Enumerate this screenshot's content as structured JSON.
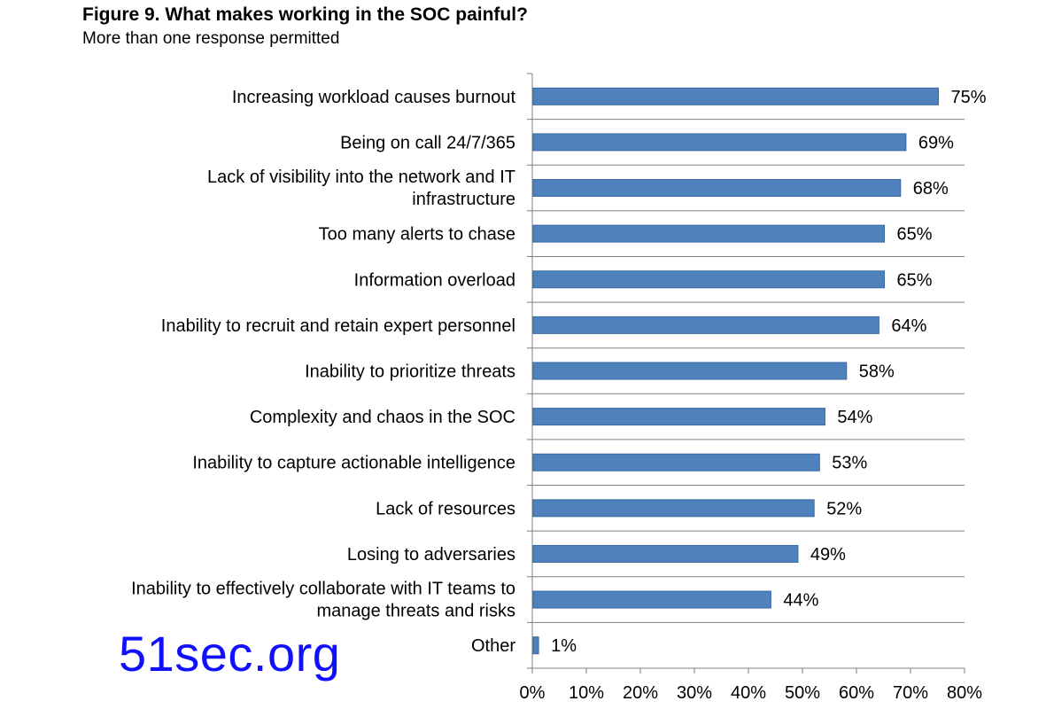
{
  "figure": {
    "title": "Figure 9. What makes working in the SOC painful?",
    "subtitle": "More than one response permitted"
  },
  "watermark": "51sec.org",
  "colors": {
    "bar": "#4f81bd",
    "bar_edge": "#3b6aa0",
    "axis": "#808080",
    "watermark": "#1010ff"
  },
  "chart_data": {
    "type": "bar",
    "orientation": "horizontal",
    "categories": [
      [
        "Increasing workload causes burnout"
      ],
      [
        "Being on call 24/7/365"
      ],
      [
        "Lack of visibility into the network and IT",
        "infrastructure"
      ],
      [
        "Too many alerts to chase"
      ],
      [
        "Information overload"
      ],
      [
        "Inability to recruit and retain expert personnel"
      ],
      [
        "Inability to prioritize threats"
      ],
      [
        "Complexity and chaos in the SOC"
      ],
      [
        "Inability to capture actionable intelligence"
      ],
      [
        "Lack of resources"
      ],
      [
        "Losing to adversaries"
      ],
      [
        "Inability to effectively collaborate with IT teams to",
        "manage threats and risks"
      ],
      [
        "Other"
      ]
    ],
    "values": [
      75,
      69,
      68,
      65,
      65,
      64,
      58,
      54,
      53,
      52,
      49,
      44,
      1
    ],
    "data_labels": [
      "75%",
      "69%",
      "68%",
      "65%",
      "65%",
      "64%",
      "58%",
      "54%",
      "53%",
      "52%",
      "49%",
      "44%",
      "1%"
    ],
    "xlim": [
      0,
      80
    ],
    "x_ticks": [
      0,
      10,
      20,
      30,
      40,
      50,
      60,
      70,
      80
    ],
    "x_tick_labels": [
      "0%",
      "10%",
      "20%",
      "30%",
      "40%",
      "50%",
      "60%",
      "70%",
      "80%"
    ],
    "xlabel": "",
    "ylabel": "",
    "grid": false,
    "legend": "none"
  }
}
